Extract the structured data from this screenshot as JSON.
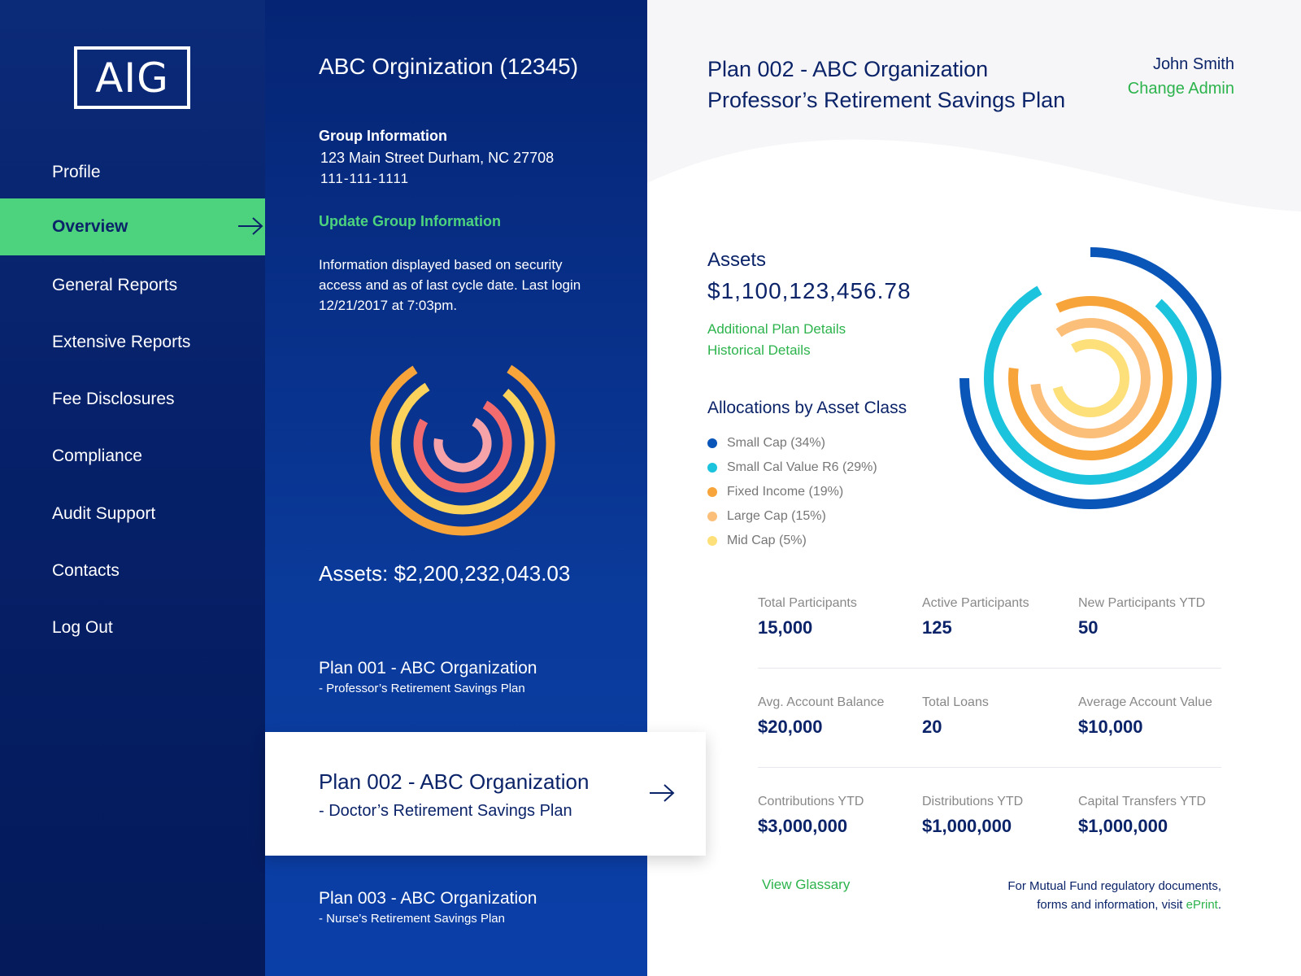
{
  "sidebar": {
    "logo": "AIG",
    "items": [
      {
        "label": "Profile",
        "active": false
      },
      {
        "label": "Overview",
        "active": true
      },
      {
        "label": "General Reports",
        "active": false
      },
      {
        "label": "Extensive Reports",
        "active": false
      },
      {
        "label": "Fee Disclosures",
        "active": false
      },
      {
        "label": "Compliance",
        "active": false
      },
      {
        "label": "Audit Support",
        "active": false
      },
      {
        "label": "Contacts",
        "active": false
      },
      {
        "label": "Log Out",
        "active": false
      }
    ]
  },
  "organization": {
    "title": "ABC Orginization (12345)",
    "group_label": "Group Information",
    "address": "123 Main Street Durham, NC 27708",
    "phone": "111-111-1111",
    "update_link": "Update Group Information",
    "info_text": "Information displayed based on security access and as of last cycle date. Last login 12/21/2017 at 7:03pm.",
    "assets": "Assets: $2,200,232,043.03",
    "chart_fractions": [
      0.82,
      0.8,
      0.75,
      0.7
    ],
    "chart_colors": [
      "#f7a43a",
      "#fbd35c",
      "#f16b6f",
      "#f5a3a8"
    ],
    "plans": [
      {
        "name": "Plan 001 - ABC Organization",
        "subtitle": "- Professor’s Retirement Savings Plan"
      },
      {
        "name": "Plan 002 - ABC Organization",
        "subtitle": "- Doctor’s Retirement Savings Plan"
      },
      {
        "name": "Plan 003 - ABC Organization",
        "subtitle": "- Nurse’s Retirement Savings Plan"
      }
    ]
  },
  "plan_detail": {
    "title_line1": "Plan 002 - ABC Organization",
    "title_line2": "Professor’s Retirement Savings Plan",
    "admin_name": "John Smith",
    "change_admin": "Change Admin",
    "assets_label": "Assets",
    "assets_value": "$1,100,123,456.78",
    "links": [
      "Additional Plan Details",
      "Historical Details"
    ],
    "allocations_title": "Allocations by Asset Class",
    "allocations": [
      {
        "label": "Small Cap (34%)",
        "color": "#0a55b8",
        "fraction": 0.75
      },
      {
        "label": "Small Cal Value R6 (29%)",
        "color": "#1cc3dc",
        "fraction": 0.8
      },
      {
        "label": "Fixed Income (19%)",
        "color": "#f7a43a",
        "fraction": 0.84
      },
      {
        "label": "Large Cap (15%)",
        "color": "#fbbf7a",
        "fraction": 0.83
      },
      {
        "label": "Mid Cap (5%)",
        "color": "#fde07a",
        "fraction": 0.79
      }
    ],
    "stats": [
      {
        "label": "Total Participants",
        "value": "15,000"
      },
      {
        "label": "Active Participants",
        "value": "125"
      },
      {
        "label": "New Participants YTD",
        "value": "50"
      },
      {
        "label": "Avg. Account Balance",
        "value": "$20,000"
      },
      {
        "label": "Total Loans",
        "value": "20"
      },
      {
        "label": "Average Account Value",
        "value": "$10,000"
      },
      {
        "label": "Contributions YTD",
        "value": "$3,000,000"
      },
      {
        "label": "Distributions YTD",
        "value": "$1,000,000"
      },
      {
        "label": "Capital Transfers YTD",
        "value": "$1,000,000"
      }
    ],
    "glossary_link": "View Glassary",
    "eprint_line1": "For Mutual Fund regulatory documents,",
    "eprint_line2": "forms and information, visit",
    "eprint_link": "ePrint",
    "eprint_end": "."
  }
}
